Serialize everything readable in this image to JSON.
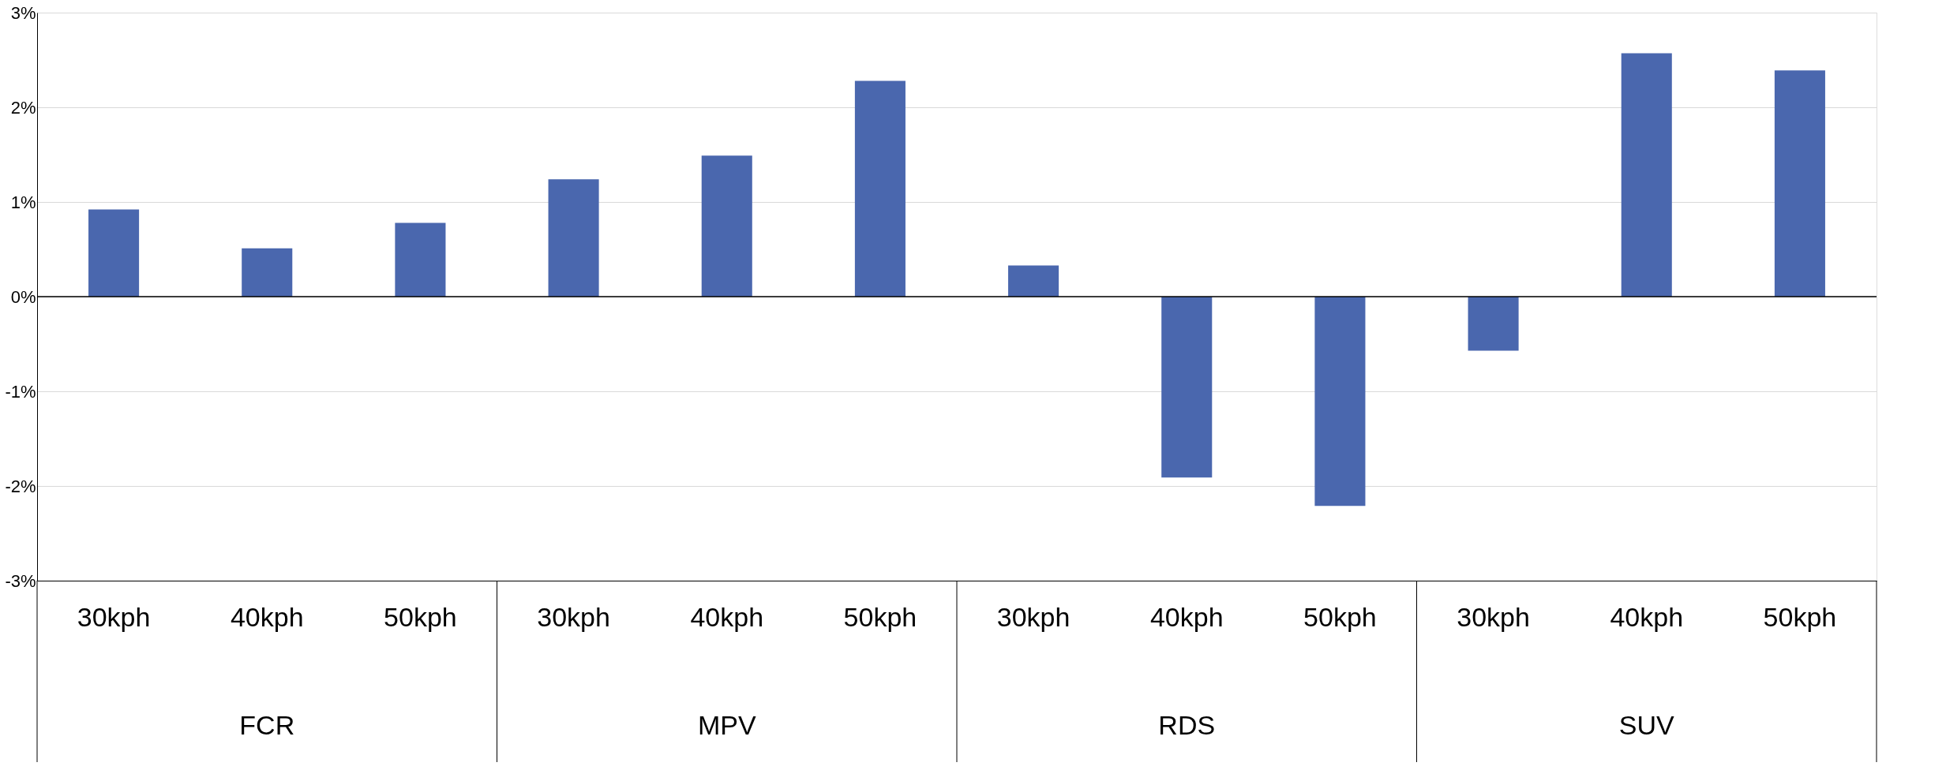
{
  "chart_data": {
    "type": "bar",
    "categories": [
      "30kph",
      "40kph",
      "50kph",
      "30kph",
      "40kph",
      "50kph",
      "30kph",
      "40kph",
      "50kph",
      "30kph",
      "40kph",
      "50kph"
    ],
    "series": [
      {
        "color": "#4a67ae",
        "values": [
          0.92,
          0.51,
          0.78,
          1.24,
          1.49,
          2.28,
          0.33,
          -1.91,
          -2.21,
          -0.57,
          2.57,
          2.39
        ]
      }
    ],
    "ylim": [
      -3,
      3
    ],
    "yticks": [
      {
        "value": -3,
        "label": "-3%"
      },
      {
        "value": -2,
        "label": "-2%"
      },
      {
        "value": -1,
        "label": "-1%"
      },
      {
        "value": 0,
        "label": "0%"
      },
      {
        "value": 1,
        "label": "1%"
      },
      {
        "value": 2,
        "label": "2%"
      },
      {
        "value": 3,
        "label": "3%"
      }
    ],
    "grid": "y",
    "annotations": [
      "FCR",
      "MPV",
      "RDS",
      "SUV"
    ]
  }
}
